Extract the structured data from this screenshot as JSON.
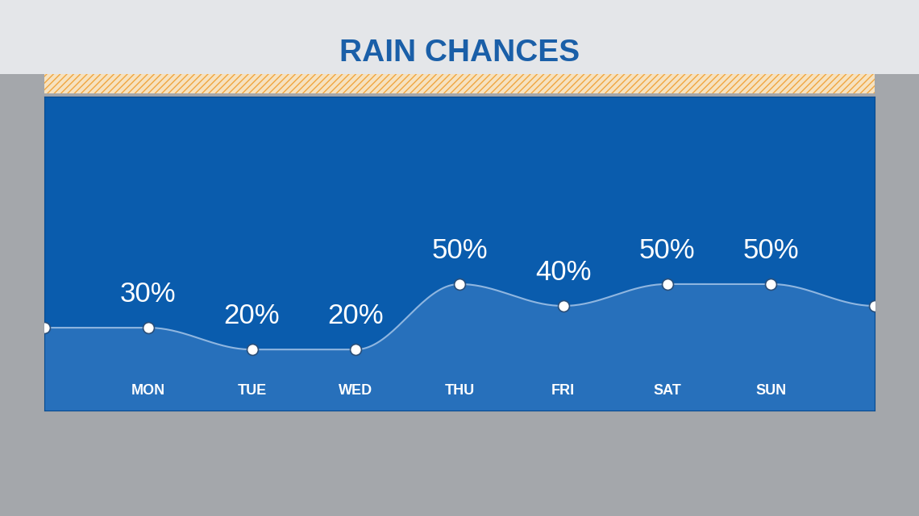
{
  "chart_data": {
    "type": "line",
    "title": "RAIN CHANCES",
    "categories": [
      null,
      "MON",
      "TUE",
      "WED",
      "THU",
      "FRI",
      "SAT",
      "SUN",
      null
    ],
    "values": [
      30,
      30,
      20,
      20,
      50,
      40,
      50,
      50,
      40
    ],
    "value_labels": [
      null,
      "30%",
      "20%",
      "20%",
      "50%",
      "40%",
      "50%",
      "50%",
      null
    ],
    "data_labels": true,
    "ylim": [
      -8,
      136
    ],
    "yticks": [],
    "tick_labels": "x",
    "grid": false,
    "color": "#8fb6e0",
    "marker": "o"
  }
}
